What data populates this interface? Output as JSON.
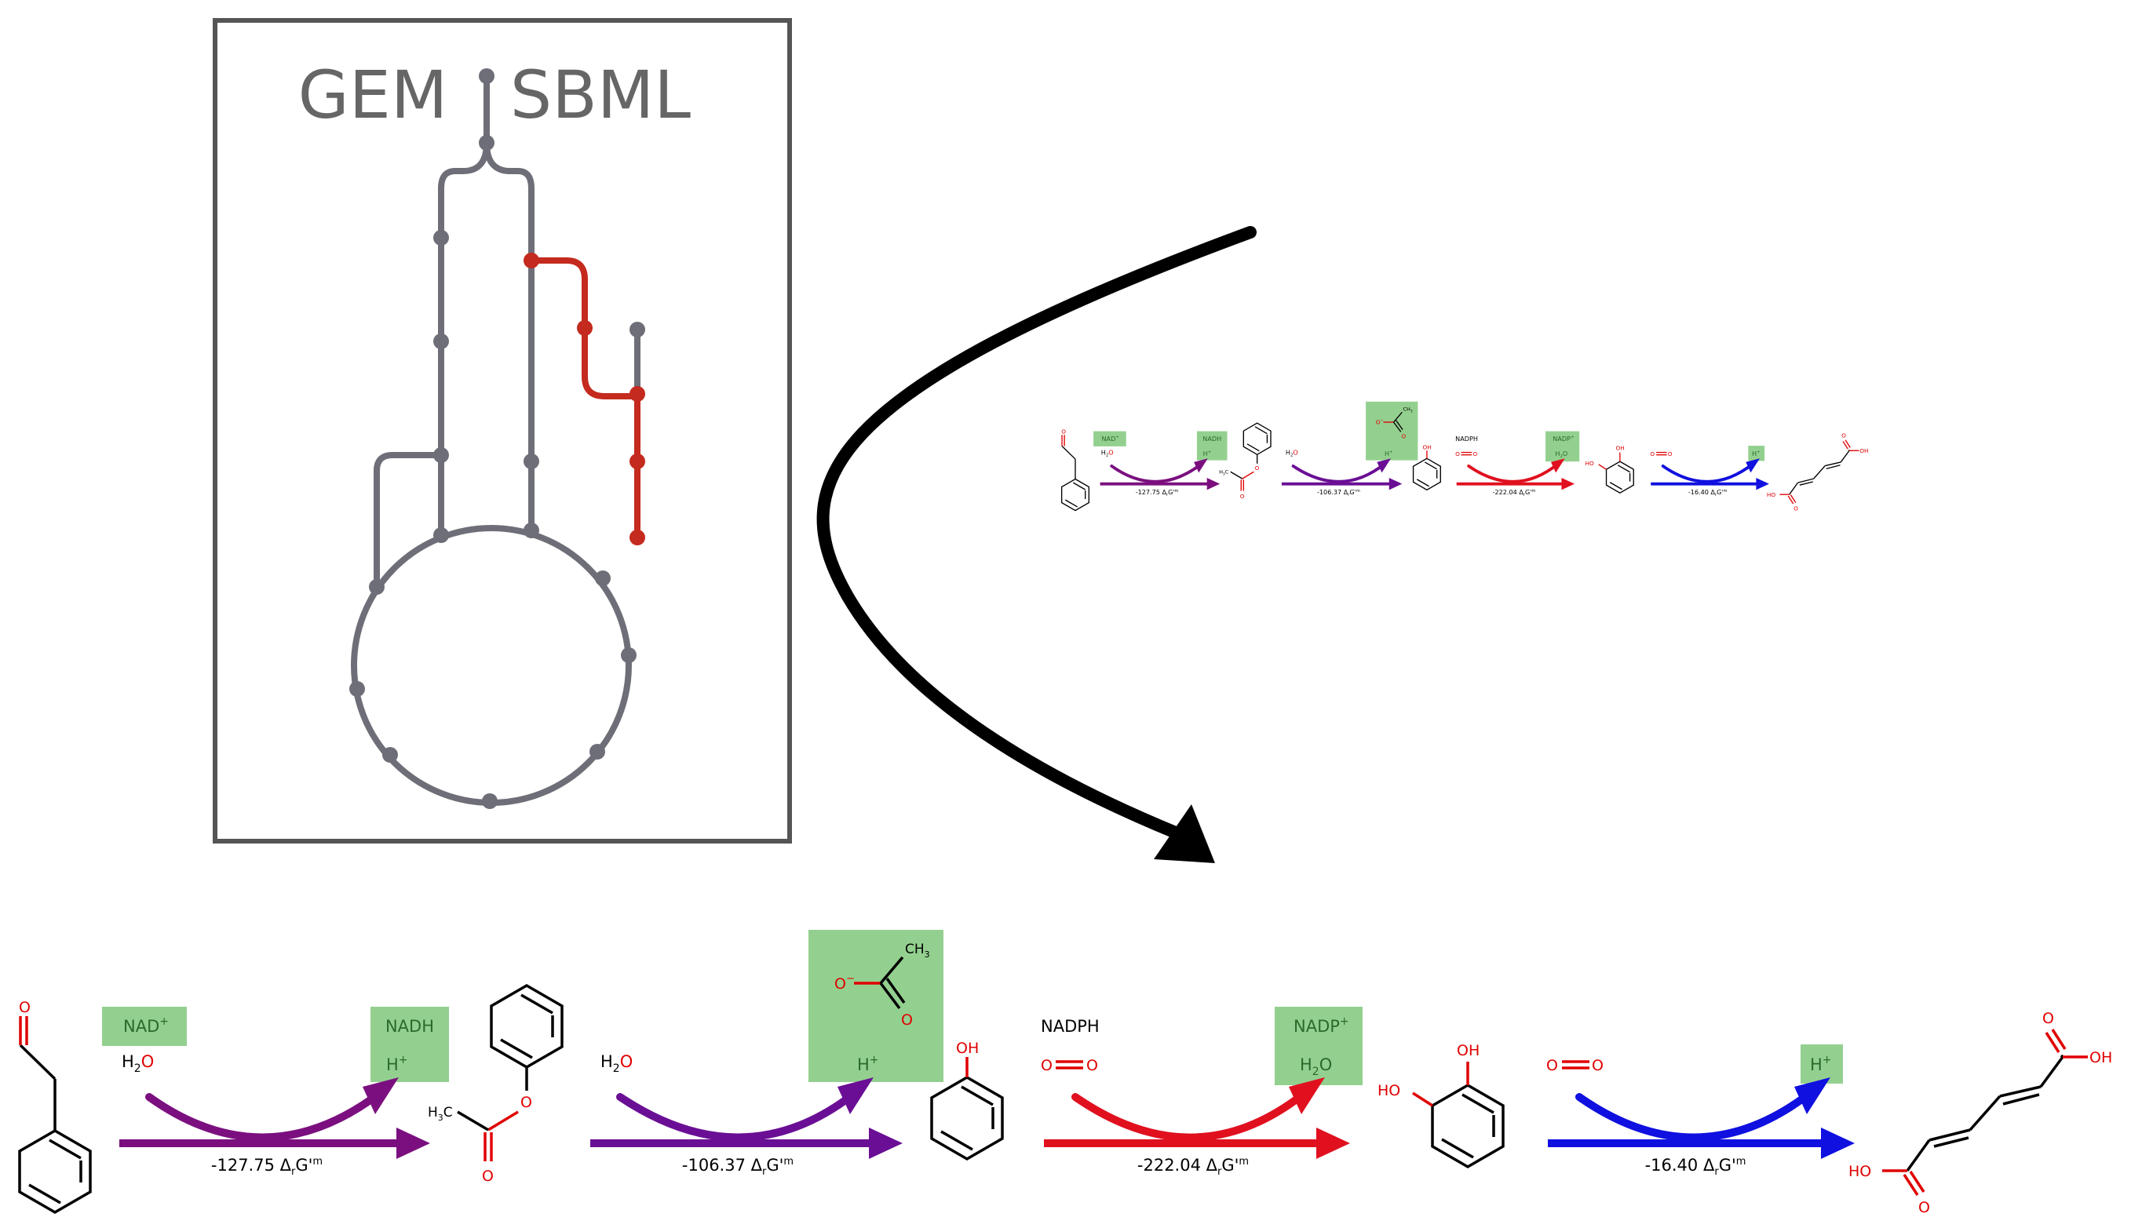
{
  "inset": {
    "left_title": "GEM",
    "right_title": "SBML"
  },
  "colors": {
    "map_grey": "#6e6e78",
    "map_red": "#c42a1e",
    "box": "#555555",
    "reaction_1": "#7b0f7f",
    "reaction_2": "#6a0f95",
    "reaction_3": "#e0101f",
    "reaction_4": "#1010e0",
    "highlight": "#93d08f",
    "highlight_text": "#2a6a2a",
    "atom_red": "#e00000"
  },
  "pathway": {
    "reactions": [
      {
        "energy": "-127.75 ΔrG'm",
        "side_in": "H2O",
        "cofactor_in": "NAD+",
        "product_box_1": "NADH",
        "product_box_2": "H+"
      },
      {
        "energy": "-106.37 ΔrG'm",
        "side_in": "H2O",
        "cofactor_in": "",
        "product_box_1": "acetate",
        "product_box_2": "H+"
      },
      {
        "energy": "-222.04 ΔrG'm",
        "side_in": "O=O",
        "cofactor_in": "NADPH",
        "product_box_1": "NADP+",
        "product_box_2": "H2O"
      },
      {
        "energy": "-16.40 ΔrG'm",
        "side_in": "O=O",
        "cofactor_in": "",
        "product_box_1": "",
        "product_box_2": "H+"
      }
    ],
    "labels": {
      "nad": "NAD",
      "nadh": "NADH",
      "nadph": "NADPH",
      "nadp": "NADP",
      "h": "H",
      "water_h": "H",
      "water_o": "O",
      "plus": "+",
      "two": "2",
      "three": "3",
      "minus": "−",
      "oh": "OH",
      "ho": "HO",
      "o": "O",
      "ch": "CH",
      "c": "C",
      "energy_1": "-127.75",
      "energy_2": "-106.37",
      "energy_3": "-222.04",
      "energy_4": "-16.40",
      "energy_unit": "ΔrG'm",
      "delta": "Δ",
      "r": "r",
      "g": "G'",
      "m": "m"
    }
  }
}
